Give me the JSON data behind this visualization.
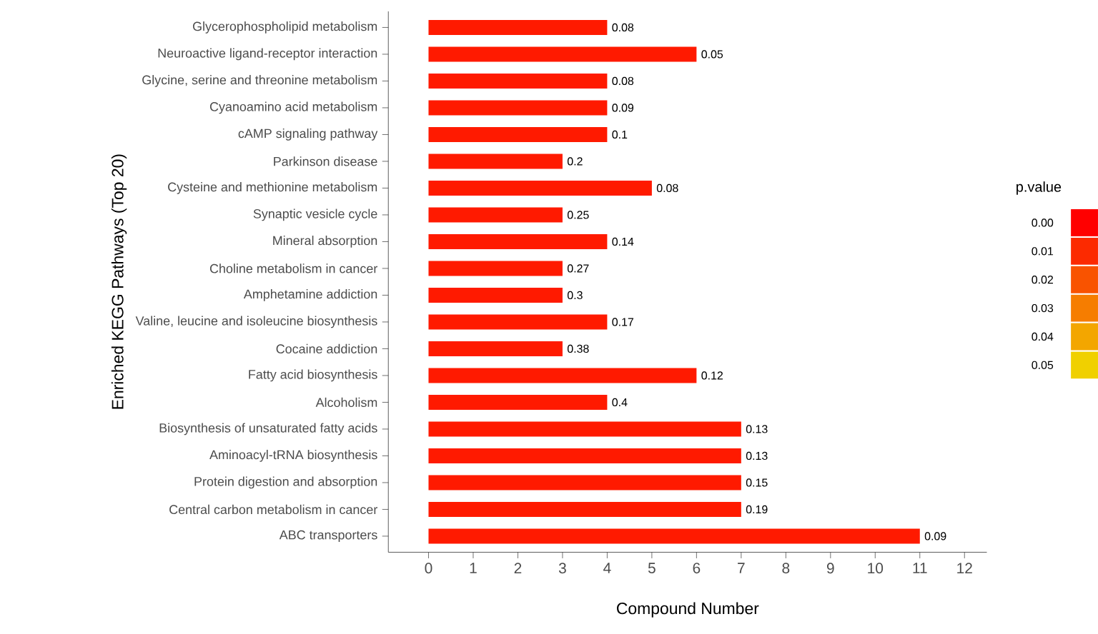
{
  "chart_data": {
    "type": "bar",
    "orientation": "horizontal",
    "xlabel": "Compound Number",
    "ylabel": "Enriched KEGG Pathways (Top 20)",
    "categories": [
      "Glycerophospholipid metabolism",
      "Neuroactive ligand-receptor interaction",
      "Glycine, serine and threonine metabolism",
      "Cyanoamino acid metabolism",
      "cAMP signaling pathway",
      "Parkinson disease",
      "Cysteine and methionine metabolism",
      "Synaptic vesicle cycle",
      "Mineral absorption",
      "Choline metabolism in cancer",
      "Amphetamine addiction",
      "Valine, leucine and isoleucine biosynthesis",
      "Cocaine addiction",
      "Fatty acid biosynthesis",
      "Alcoholism",
      "Biosynthesis of unsaturated fatty acids",
      "Aminoacyl-tRNA biosynthesis",
      "Protein digestion and absorption",
      "Central carbon metabolism in cancer",
      "ABC transporters"
    ],
    "values": [
      4,
      6,
      4,
      4,
      4,
      3,
      5,
      3,
      4,
      3,
      3,
      4,
      3,
      6,
      4,
      7,
      7,
      7,
      7,
      11
    ],
    "annotations": [
      {
        "text": "0.08",
        "x": 4,
        "y": "Glycerophospholipid metabolism"
      },
      {
        "text": "0.05",
        "x": 6,
        "y": "Neuroactive ligand-receptor interaction"
      },
      {
        "text": "0.08",
        "x": 4,
        "y": "Glycine, serine and threonine metabolism"
      },
      {
        "text": "0.09",
        "x": 4,
        "y": "Cyanoamino acid metabolism"
      },
      {
        "text": "0.1",
        "x": 4,
        "y": "cAMP signaling pathway"
      },
      {
        "text": "0.2",
        "x": 3,
        "y": "Parkinson disease"
      },
      {
        "text": "0.08",
        "x": 5,
        "y": "Cysteine and methionine metabolism"
      },
      {
        "text": "0.25",
        "x": 3,
        "y": "Synaptic vesicle cycle"
      },
      {
        "text": "0.14",
        "x": 4,
        "y": "Mineral absorption"
      },
      {
        "text": "0.27",
        "x": 3,
        "y": "Choline metabolism in cancer"
      },
      {
        "text": "0.3",
        "x": 3,
        "y": "Amphetamine addiction"
      },
      {
        "text": "0.17",
        "x": 4,
        "y": "Valine, leucine and isoleucine biosynthesis"
      },
      {
        "text": "0.38",
        "x": 3,
        "y": "Cocaine addiction"
      },
      {
        "text": "0.12",
        "x": 6,
        "y": "Fatty acid biosynthesis"
      },
      {
        "text": "0.4",
        "x": 4,
        "y": "Alcoholism"
      },
      {
        "text": "0.13",
        "x": 7,
        "y": "Biosynthesis of unsaturated fatty acids"
      },
      {
        "text": "0.13",
        "x": 7,
        "y": "Aminoacyl-tRNA biosynthesis"
      },
      {
        "text": "0.15",
        "x": 7,
        "y": "Protein digestion and absorption"
      },
      {
        "text": "0.19",
        "x": 7,
        "y": "Central carbon metabolism in cancer"
      },
      {
        "text": "0.09",
        "x": 11,
        "y": "ABC transporters"
      }
    ],
    "color": "#ff1a00",
    "xlim": [
      -0.9,
      12.5
    ],
    "xticks": [
      0,
      1,
      2,
      3,
      4,
      5,
      6,
      7,
      8,
      9,
      10,
      11,
      12
    ],
    "clabel": "p.value",
    "cticks": [
      {
        "value": 0,
        "label": "0.00"
      },
      {
        "value": 0.01,
        "label": "0.01"
      },
      {
        "value": 0.02,
        "label": "0.02"
      },
      {
        "value": 0.03,
        "label": "0.03"
      },
      {
        "value": 0.04,
        "label": "0.04"
      },
      {
        "value": 0.05,
        "label": "0.05"
      }
    ],
    "grid": false
  }
}
